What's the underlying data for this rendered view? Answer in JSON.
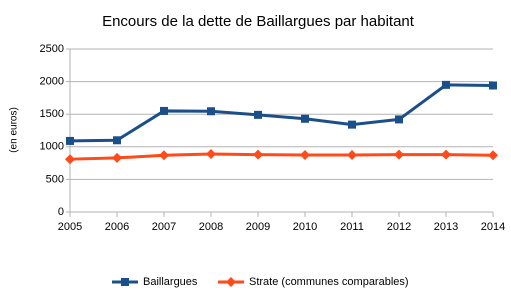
{
  "chart_data": {
    "type": "line",
    "title": "Encours de la dette  de Baillargues par habitant",
    "y_label": "(en euros)",
    "x": [
      2005,
      2006,
      2007,
      2008,
      2009,
      2010,
      2011,
      2012,
      2013,
      2014
    ],
    "xlim": [
      2005,
      2014
    ],
    "xticks": [
      2005,
      2006,
      2007,
      2008,
      2009,
      2010,
      2011,
      2012,
      2013,
      2014
    ],
    "ylim": [
      0,
      2500
    ],
    "yticks": [
      0,
      500,
      1000,
      1500,
      2000,
      2500
    ],
    "grid": true,
    "legend": "bottom",
    "series": [
      {
        "name": "Baillargues",
        "color": "#1b4f8a",
        "marker": "square",
        "values": [
          1090,
          1100,
          1550,
          1545,
          1490,
          1430,
          1340,
          1420,
          1950,
          1940
        ]
      },
      {
        "name": "Strate (communes comparables)",
        "color": "#ff4a1a",
        "marker": "diamond",
        "values": [
          810,
          830,
          870,
          890,
          880,
          875,
          875,
          880,
          880,
          870
        ]
      }
    ]
  }
}
